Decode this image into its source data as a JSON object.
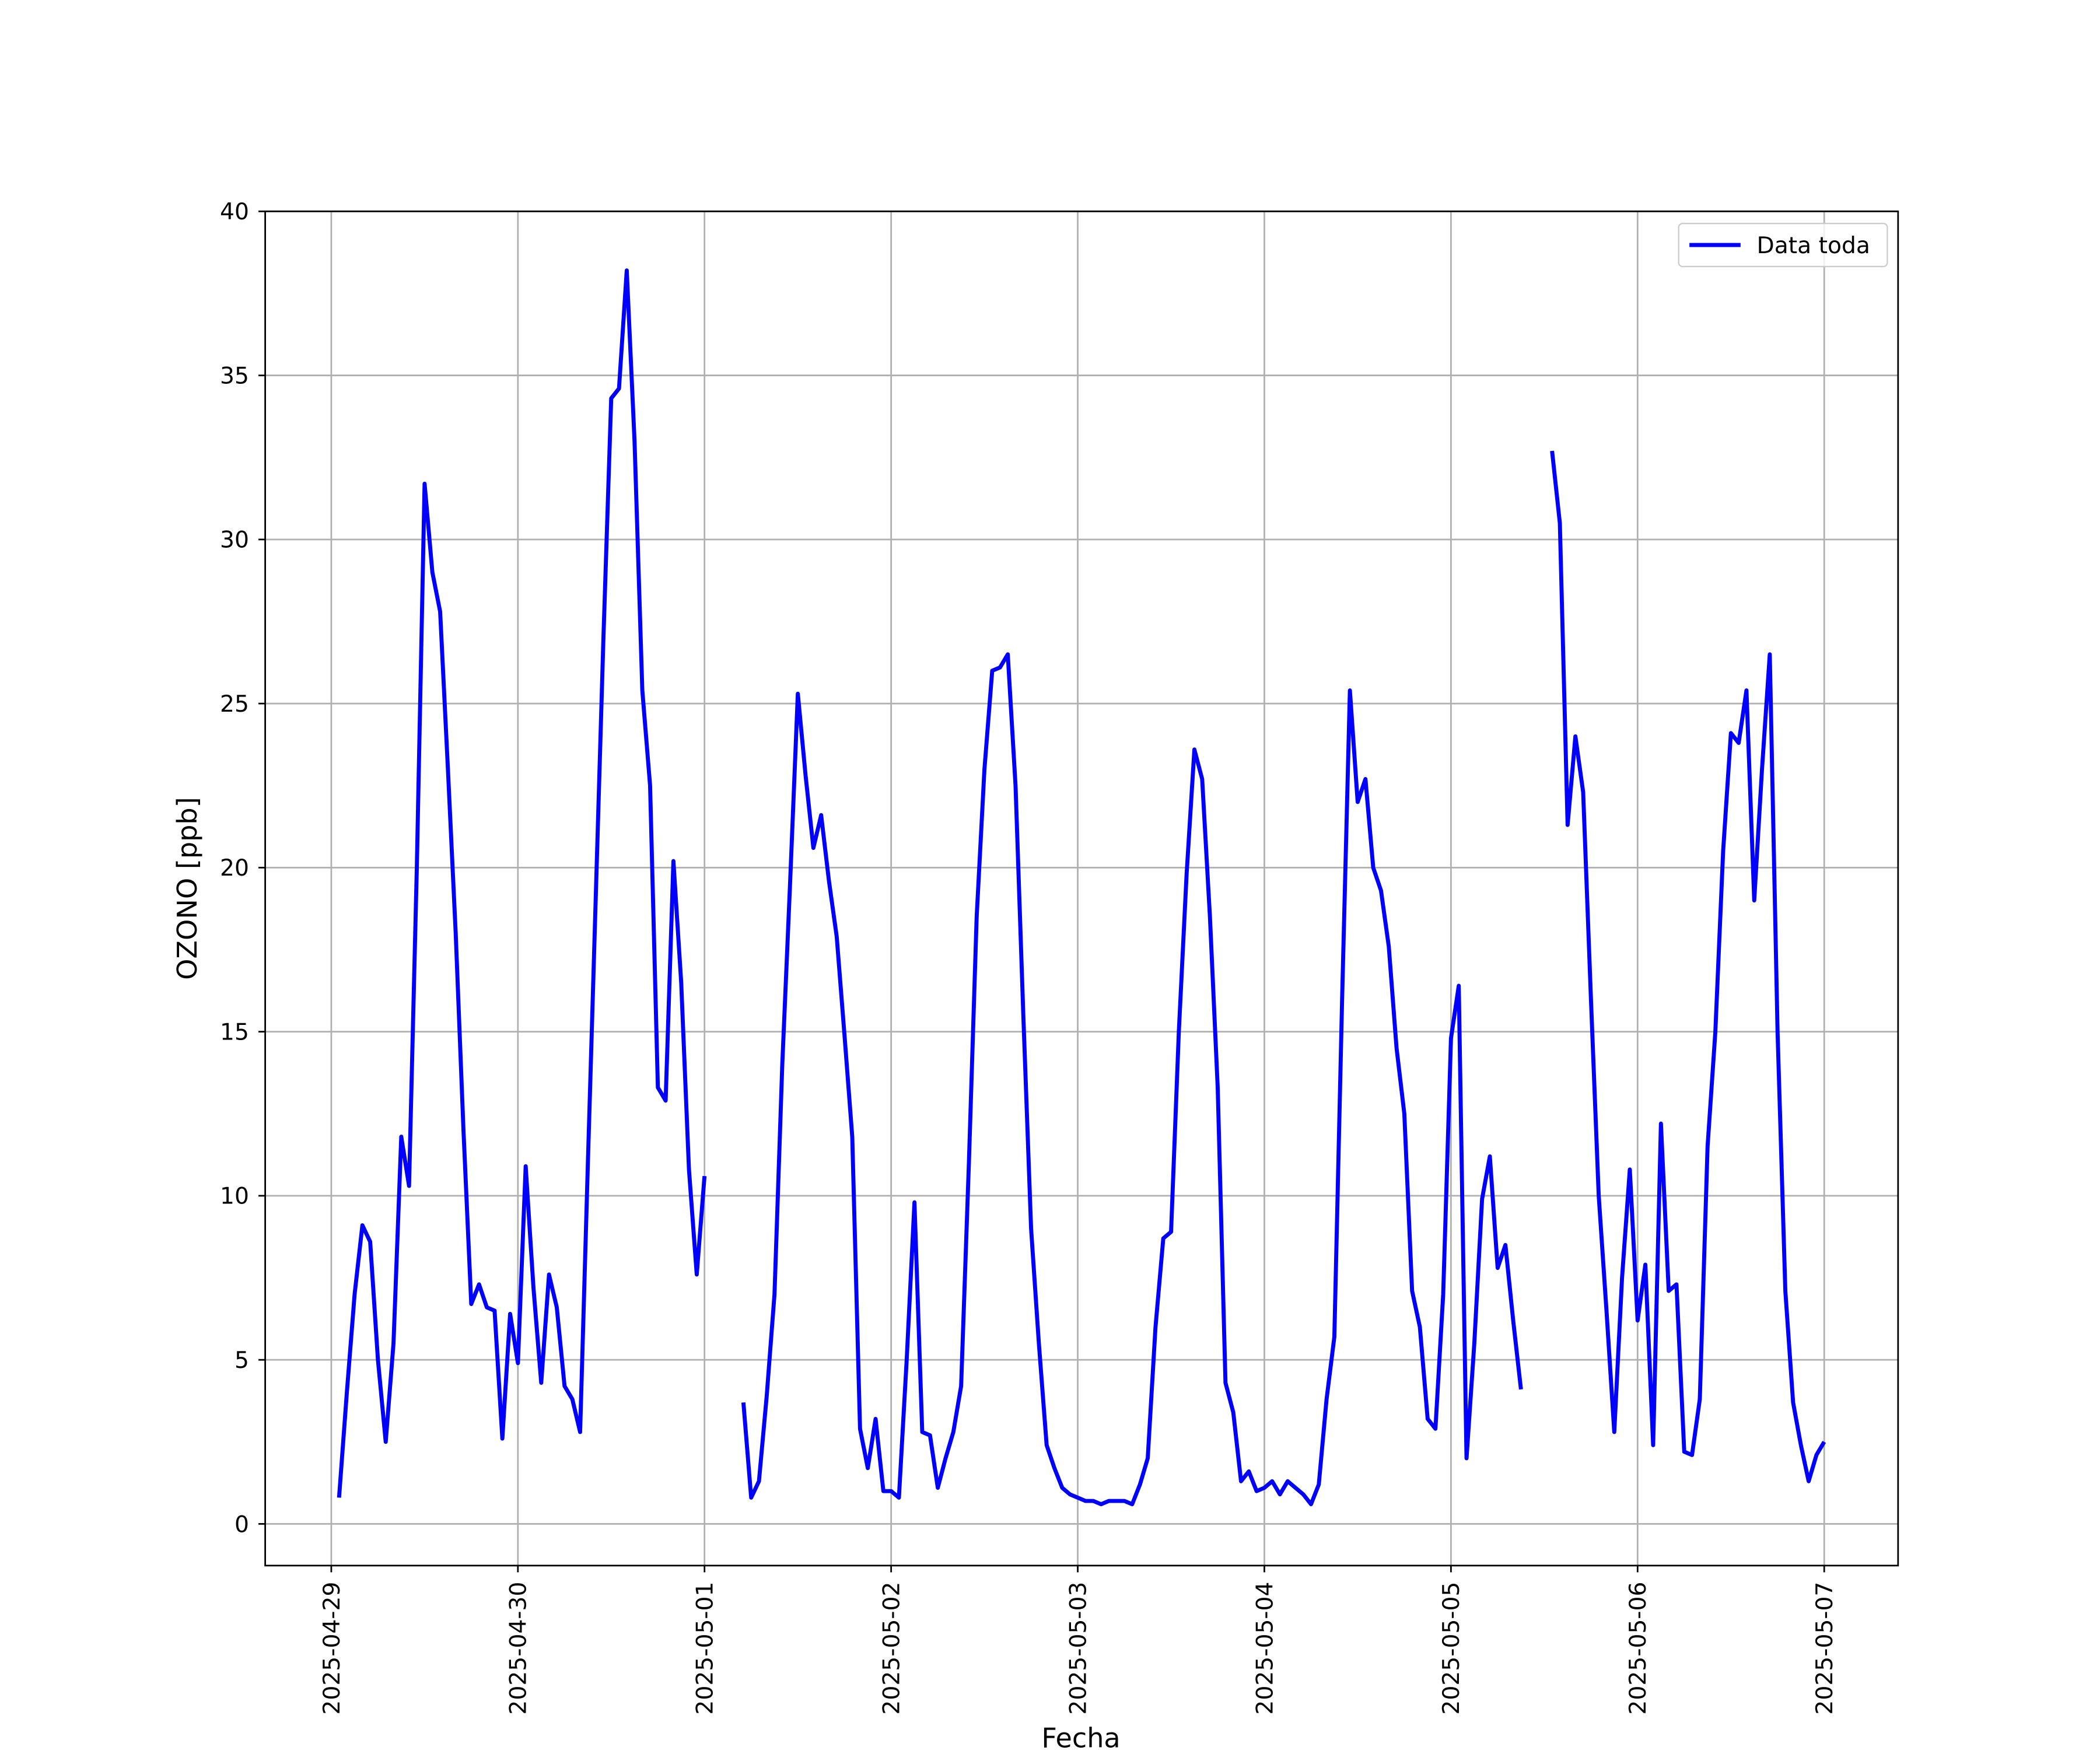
{
  "chart_data": {
    "type": "line",
    "xlabel": "Fecha",
    "ylabel": "OZONO [ppb]",
    "x": [
      "2025-04-29 01:00",
      "2025-04-29 02:00",
      "2025-04-29 03:00",
      "2025-04-29 04:00",
      "2025-04-29 05:00",
      "2025-04-29 06:00",
      "2025-04-29 07:00",
      "2025-04-29 08:00",
      "2025-04-29 09:00",
      "2025-04-29 10:00",
      "2025-04-29 11:00",
      "2025-04-29 12:00",
      "2025-04-29 13:00",
      "2025-04-29 14:00",
      "2025-04-29 15:00",
      "2025-04-29 16:00",
      "2025-04-29 17:00",
      "2025-04-29 18:00",
      "2025-04-29 19:00",
      "2025-04-29 20:00",
      "2025-04-29 21:00",
      "2025-04-29 22:00",
      "2025-04-29 23:00",
      "2025-04-30 00:00",
      "2025-04-30 01:00",
      "2025-04-30 02:00",
      "2025-04-30 03:00",
      "2025-04-30 04:00",
      "2025-04-30 05:00",
      "2025-04-30 06:00",
      "2025-04-30 07:00",
      "2025-04-30 08:00",
      "2025-04-30 09:00",
      "2025-04-30 10:00",
      "2025-04-30 11:00",
      "2025-04-30 12:00",
      "2025-04-30 13:00",
      "2025-04-30 14:00",
      "2025-04-30 15:00",
      "2025-04-30 16:00",
      "2025-04-30 17:00",
      "2025-04-30 18:00",
      "2025-04-30 19:00",
      "2025-04-30 20:00",
      "2025-04-30 21:00",
      "2025-04-30 22:00",
      "2025-04-30 23:00",
      "2025-05-01 00:00",
      "2025-05-01 01:00",
      "2025-05-01 02:00",
      "2025-05-01 03:00",
      "2025-05-01 04:00",
      "2025-05-01 05:00",
      "2025-05-01 06:00",
      "2025-05-01 07:00",
      "2025-05-01 08:00",
      "2025-05-01 09:00",
      "2025-05-01 10:00",
      "2025-05-01 11:00",
      "2025-05-01 12:00",
      "2025-05-01 13:00",
      "2025-05-01 14:00",
      "2025-05-01 15:00",
      "2025-05-01 16:00",
      "2025-05-01 17:00",
      "2025-05-01 18:00",
      "2025-05-01 19:00",
      "2025-05-01 20:00",
      "2025-05-01 21:00",
      "2025-05-01 22:00",
      "2025-05-01 23:00",
      "2025-05-02 00:00",
      "2025-05-02 01:00",
      "2025-05-02 02:00",
      "2025-05-02 03:00",
      "2025-05-02 04:00",
      "2025-05-02 05:00",
      "2025-05-02 06:00",
      "2025-05-02 07:00",
      "2025-05-02 08:00",
      "2025-05-02 09:00",
      "2025-05-02 10:00",
      "2025-05-02 11:00",
      "2025-05-02 12:00",
      "2025-05-02 13:00",
      "2025-05-02 14:00",
      "2025-05-02 15:00",
      "2025-05-02 16:00",
      "2025-05-02 17:00",
      "2025-05-02 18:00",
      "2025-05-02 19:00",
      "2025-05-02 20:00",
      "2025-05-02 21:00",
      "2025-05-02 22:00",
      "2025-05-02 23:00",
      "2025-05-03 00:00",
      "2025-05-03 01:00",
      "2025-05-03 02:00",
      "2025-05-03 03:00",
      "2025-05-03 04:00",
      "2025-05-03 05:00",
      "2025-05-03 06:00",
      "2025-05-03 07:00",
      "2025-05-03 08:00",
      "2025-05-03 09:00",
      "2025-05-03 10:00",
      "2025-05-03 11:00",
      "2025-05-03 12:00",
      "2025-05-03 13:00",
      "2025-05-03 14:00",
      "2025-05-03 15:00",
      "2025-05-03 16:00",
      "2025-05-03 17:00",
      "2025-05-03 18:00",
      "2025-05-03 19:00",
      "2025-05-03 20:00",
      "2025-05-03 21:00",
      "2025-05-03 22:00",
      "2025-05-03 23:00",
      "2025-05-04 00:00",
      "2025-05-04 01:00",
      "2025-05-04 02:00",
      "2025-05-04 03:00",
      "2025-05-04 04:00",
      "2025-05-04 05:00",
      "2025-05-04 06:00",
      "2025-05-04 07:00",
      "2025-05-04 08:00",
      "2025-05-04 09:00",
      "2025-05-04 10:00",
      "2025-05-04 11:00",
      "2025-05-04 12:00",
      "2025-05-04 13:00",
      "2025-05-04 14:00",
      "2025-05-04 15:00",
      "2025-05-04 16:00",
      "2025-05-04 17:00",
      "2025-05-04 18:00",
      "2025-05-04 19:00",
      "2025-05-04 20:00",
      "2025-05-04 21:00",
      "2025-05-04 22:00",
      "2025-05-04 23:00",
      "2025-05-05 00:00",
      "2025-05-05 01:00",
      "2025-05-05 02:00",
      "2025-05-05 03:00",
      "2025-05-05 04:00",
      "2025-05-05 05:00",
      "2025-05-05 06:00",
      "2025-05-05 07:00",
      "2025-05-05 08:00",
      "2025-05-05 09:00",
      "2025-05-05 10:00",
      "2025-05-05 11:00",
      "2025-05-05 12:00",
      "2025-05-05 13:00",
      "2025-05-05 14:00",
      "2025-05-05 15:00",
      "2025-05-05 16:00",
      "2025-05-05 17:00",
      "2025-05-05 18:00",
      "2025-05-05 19:00",
      "2025-05-05 20:00",
      "2025-05-05 21:00",
      "2025-05-05 22:00",
      "2025-05-05 23:00",
      "2025-05-06 00:00",
      "2025-05-06 01:00",
      "2025-05-06 02:00",
      "2025-05-06 03:00",
      "2025-05-06 04:00",
      "2025-05-06 05:00",
      "2025-05-06 06:00",
      "2025-05-06 07:00",
      "2025-05-06 08:00",
      "2025-05-06 09:00",
      "2025-05-06 10:00",
      "2025-05-06 11:00",
      "2025-05-06 12:00",
      "2025-05-06 13:00",
      "2025-05-06 14:00",
      "2025-05-06 15:00",
      "2025-05-06 16:00",
      "2025-05-06 17:00",
      "2025-05-06 18:00",
      "2025-05-06 19:00",
      "2025-05-06 20:00",
      "2025-05-06 21:00",
      "2025-05-06 22:00",
      "2025-05-06 23:00",
      "2025-05-07 00:00"
    ],
    "series": [
      {
        "name": "Data toda",
        "color": "#0000ff",
        "values": [
          0.8,
          4,
          7,
          9.1,
          8.6,
          5,
          2.5,
          5.5,
          11.8,
          10.3,
          20,
          31.7,
          29,
          27.8,
          23,
          18,
          12,
          6.7,
          7.3,
          6.6,
          6.5,
          2.6,
          6.4,
          4.9,
          10.9,
          7.2,
          4.3,
          7.6,
          6.6,
          4.2,
          3.8,
          2.8,
          11,
          19,
          27,
          34.3,
          34.6,
          38.2,
          33,
          25.4,
          22.5,
          13.3,
          12.9,
          20.2,
          16.5,
          10.8,
          7.6,
          10.6,
          null,
          null,
          null,
          null,
          3.7,
          0.8,
          1.3,
          3.9,
          7,
          14,
          19.5,
          25.3,
          22.8,
          20.6,
          21.6,
          19.6,
          17.9,
          14.9,
          11.8,
          2.9,
          1.7,
          3.2,
          1,
          1,
          0.8,
          5,
          9.8,
          2.8,
          2.7,
          1.1,
          2,
          2.8,
          4.2,
          11,
          18.5,
          23,
          26,
          26.1,
          26.5,
          22.5,
          15.5,
          9,
          5.5,
          2.4,
          1.7,
          1.1,
          0.9,
          0.8,
          0.7,
          0.7,
          0.6,
          0.7,
          0.7,
          0.7,
          0.6,
          1.2,
          2,
          6,
          8.7,
          8.9,
          15,
          19.8,
          23.6,
          22.7,
          18.5,
          13.3,
          4.3,
          3.4,
          1.3,
          1.6,
          1,
          1.1,
          1.3,
          0.9,
          1.3,
          1.1,
          0.9,
          0.6,
          1.2,
          3.8,
          5.7,
          16,
          25.4,
          22,
          22.7,
          20,
          19.3,
          17.6,
          14.5,
          12.5,
          7.1,
          6,
          3.2,
          2.9,
          7,
          14.8,
          16.4,
          2,
          5.5,
          9.9,
          11.2,
          7.8,
          8.5,
          6.2,
          4.1,
          null,
          null,
          null,
          32.7,
          30.5,
          21.3,
          24,
          22.3,
          16,
          10,
          6.5,
          2.8,
          7.5,
          10.8,
          6.2,
          7.9,
          2.4,
          12.2,
          7.1,
          7.3,
          2.2,
          2.1,
          3.8,
          11.5,
          15,
          20.5,
          24.1,
          23.8,
          25.4,
          19,
          23,
          26.5,
          15,
          7.1,
          3.7,
          2.4,
          1.3,
          2.1,
          2.5
        ]
      }
    ],
    "xlim": [
      "2025-04-28 15:30",
      "2025-05-07 09:30"
    ],
    "xticks": [
      "2025-04-29",
      "2025-04-30",
      "2025-05-01",
      "2025-05-02",
      "2025-05-03",
      "2025-05-04",
      "2025-05-05",
      "2025-05-06",
      "2025-05-07"
    ],
    "ylim": [
      -1.27,
      40
    ],
    "yticks": [
      0,
      5,
      10,
      15,
      20,
      25,
      30,
      35,
      40
    ],
    "grid": true,
    "legend": "upper right"
  }
}
